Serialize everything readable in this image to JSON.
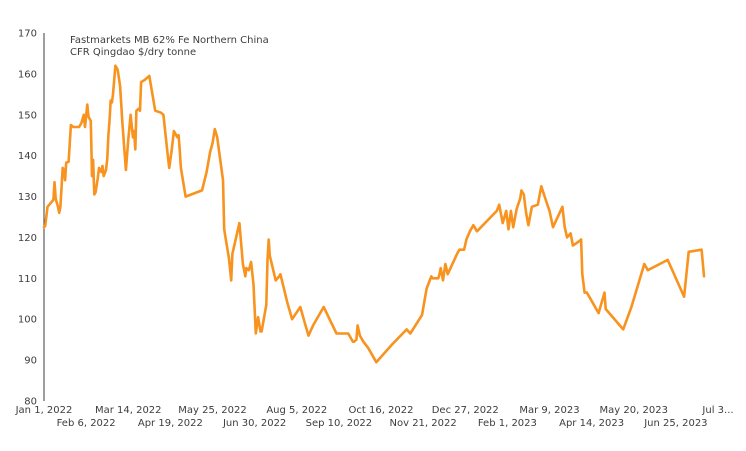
{
  "chart_data": {
    "type": "line",
    "title_lines": [
      "Fastmarkets MB 62% Fe Northern China",
      "CFR Qingdao $/dry tonne"
    ],
    "xlabel": "",
    "ylabel": "",
    "ylim": [
      80,
      170
    ],
    "y_ticks": [
      80,
      90,
      100,
      110,
      120,
      130,
      140,
      150,
      160,
      170
    ],
    "x_range": [
      "2022-01-01",
      "2023-07-31"
    ],
    "x_ticks_upper": [
      {
        "date": "2022-01-01",
        "label": "Jan 1, 2022"
      },
      {
        "date": "2022-03-14",
        "label": "Mar 14, 2022"
      },
      {
        "date": "2022-05-25",
        "label": "May 25, 2022"
      },
      {
        "date": "2022-08-05",
        "label": "Aug 5, 2022"
      },
      {
        "date": "2022-10-16",
        "label": "Oct 16, 2022"
      },
      {
        "date": "2022-12-27",
        "label": "Dec 27, 2022"
      },
      {
        "date": "2023-03-09",
        "label": "Mar 9, 2023"
      },
      {
        "date": "2023-05-20",
        "label": "May 20, 2023"
      },
      {
        "date": "2023-07-31",
        "label": "Jul 3..."
      }
    ],
    "x_ticks_lower": [
      {
        "date": "2022-02-06",
        "label": "Feb 6, 2022"
      },
      {
        "date": "2022-04-19",
        "label": "Apr 19, 2022"
      },
      {
        "date": "2022-06-30",
        "label": "Jun 30, 2022"
      },
      {
        "date": "2022-09-10",
        "label": "Sep 10, 2022"
      },
      {
        "date": "2022-11-21",
        "label": "Nov 21, 2022"
      },
      {
        "date": "2023-02-01",
        "label": "Feb 1, 2023"
      },
      {
        "date": "2023-04-14",
        "label": "Apr 14, 2023"
      },
      {
        "date": "2023-06-25",
        "label": "Jun 25, 2023"
      }
    ],
    "grid": false,
    "series": [
      {
        "color": "#f7931e",
        "points": [
          {
            "x": "2022-01-01",
            "y": 122.5
          },
          {
            "x": "2022-01-02",
            "y": 122.8
          },
          {
            "x": "2022-01-04",
            "y": 127.5
          },
          {
            "x": "2022-01-07",
            "y": 128.5
          },
          {
            "x": "2022-01-09",
            "y": 129.2
          },
          {
            "x": "2022-01-10",
            "y": 133.5
          },
          {
            "x": "2022-01-11",
            "y": 129.5
          },
          {
            "x": "2022-01-13",
            "y": 127.5
          },
          {
            "x": "2022-01-14",
            "y": 126.0
          },
          {
            "x": "2022-01-15",
            "y": 127.5
          },
          {
            "x": "2022-01-17",
            "y": 137.0
          },
          {
            "x": "2022-01-18",
            "y": 136.5
          },
          {
            "x": "2022-01-19",
            "y": 134.0
          },
          {
            "x": "2022-01-20",
            "y": 138.3
          },
          {
            "x": "2022-01-22",
            "y": 138.5
          },
          {
            "x": "2022-01-24",
            "y": 147.5
          },
          {
            "x": "2022-01-26",
            "y": 147.0
          },
          {
            "x": "2022-01-27",
            "y": 147.0
          },
          {
            "x": "2022-01-31",
            "y": 147.0
          },
          {
            "x": "2022-02-02",
            "y": 148.0
          },
          {
            "x": "2022-02-04",
            "y": 150.0
          },
          {
            "x": "2022-02-05",
            "y": 147.0
          },
          {
            "x": "2022-02-07",
            "y": 152.5
          },
          {
            "x": "2022-02-08",
            "y": 149.5
          },
          {
            "x": "2022-02-10",
            "y": 148.5
          },
          {
            "x": "2022-02-11",
            "y": 135.0
          },
          {
            "x": "2022-02-12",
            "y": 139.0
          },
          {
            "x": "2022-02-13",
            "y": 130.5
          },
          {
            "x": "2022-02-14",
            "y": 131.0
          },
          {
            "x": "2022-02-16",
            "y": 134.5
          },
          {
            "x": "2022-02-17",
            "y": 137.0
          },
          {
            "x": "2022-02-19",
            "y": 136.0
          },
          {
            "x": "2022-02-20",
            "y": 137.5
          },
          {
            "x": "2022-02-21",
            "y": 135.0
          },
          {
            "x": "2022-02-23",
            "y": 136.5
          },
          {
            "x": "2022-02-24",
            "y": 139.0
          },
          {
            "x": "2022-02-25",
            "y": 145.0
          },
          {
            "x": "2022-02-26",
            "y": 148.5
          },
          {
            "x": "2022-02-27",
            "y": 153.5
          },
          {
            "x": "2022-02-28",
            "y": 153.0
          },
          {
            "x": "2022-03-01",
            "y": 155.0
          },
          {
            "x": "2022-03-03",
            "y": 162.0
          },
          {
            "x": "2022-03-05",
            "y": 161.0
          },
          {
            "x": "2022-03-07",
            "y": 157.0
          },
          {
            "x": "2022-03-09",
            "y": 148.0
          },
          {
            "x": "2022-03-10",
            "y": 144.0
          },
          {
            "x": "2022-03-12",
            "y": 136.5
          },
          {
            "x": "2022-03-14",
            "y": 144.0
          },
          {
            "x": "2022-03-16",
            "y": 150.0
          },
          {
            "x": "2022-03-18",
            "y": 144.5
          },
          {
            "x": "2022-03-19",
            "y": 146.0
          },
          {
            "x": "2022-03-20",
            "y": 141.5
          },
          {
            "x": "2022-03-21",
            "y": 151.0
          },
          {
            "x": "2022-03-23",
            "y": 151.5
          },
          {
            "x": "2022-03-24",
            "y": 151.0
          },
          {
            "x": "2022-03-25",
            "y": 158.0
          },
          {
            "x": "2022-03-28",
            "y": 158.5
          },
          {
            "x": "2022-04-01",
            "y": 159.5
          },
          {
            "x": "2022-04-06",
            "y": 151.0
          },
          {
            "x": "2022-04-11",
            "y": 150.5
          },
          {
            "x": "2022-04-13",
            "y": 150.0
          },
          {
            "x": "2022-04-16",
            "y": 142.0
          },
          {
            "x": "2022-04-18",
            "y": 137.0
          },
          {
            "x": "2022-04-20",
            "y": 141.0
          },
          {
            "x": "2022-04-22",
            "y": 146.0
          },
          {
            "x": "2022-04-25",
            "y": 144.5
          },
          {
            "x": "2022-04-26",
            "y": 145.0
          },
          {
            "x": "2022-04-27",
            "y": 141.5
          },
          {
            "x": "2022-04-28",
            "y": 137.0
          },
          {
            "x": "2022-05-02",
            "y": 130.0
          },
          {
            "x": "2022-05-16",
            "y": 131.5
          },
          {
            "x": "2022-05-20",
            "y": 136.0
          },
          {
            "x": "2022-05-23",
            "y": 141.0
          },
          {
            "x": "2022-05-25",
            "y": 143.0
          },
          {
            "x": "2022-05-27",
            "y": 146.5
          },
          {
            "x": "2022-05-29",
            "y": 144.5
          },
          {
            "x": "2022-06-03",
            "y": 134.0
          },
          {
            "x": "2022-06-04",
            "y": 122.0
          },
          {
            "x": "2022-06-06",
            "y": 118.5
          },
          {
            "x": "2022-06-08",
            "y": 115.0
          },
          {
            "x": "2022-06-10",
            "y": 109.5
          },
          {
            "x": "2022-06-11",
            "y": 116.0
          },
          {
            "x": "2022-06-17",
            "y": 123.5
          },
          {
            "x": "2022-06-20",
            "y": 113.5
          },
          {
            "x": "2022-06-22",
            "y": 110.5
          },
          {
            "x": "2022-06-23",
            "y": 112.5
          },
          {
            "x": "2022-06-25",
            "y": 112.0
          },
          {
            "x": "2022-06-27",
            "y": 114.0
          },
          {
            "x": "2022-06-29",
            "y": 108.5
          },
          {
            "x": "2022-07-01",
            "y": 96.5
          },
          {
            "x": "2022-07-03",
            "y": 100.5
          },
          {
            "x": "2022-07-05",
            "y": 97.0
          },
          {
            "x": "2022-07-06",
            "y": 97.0
          },
          {
            "x": "2022-07-10",
            "y": 103.5
          },
          {
            "x": "2022-07-11",
            "y": 114.5
          },
          {
            "x": "2022-07-12",
            "y": 119.5
          },
          {
            "x": "2022-07-13",
            "y": 115.5
          },
          {
            "x": "2022-07-18",
            "y": 109.5
          },
          {
            "x": "2022-07-21",
            "y": 110.5
          },
          {
            "x": "2022-07-22",
            "y": 111.0
          },
          {
            "x": "2022-07-28",
            "y": 104.0
          },
          {
            "x": "2022-08-01",
            "y": 100.0
          },
          {
            "x": "2022-08-08",
            "y": 103.0
          },
          {
            "x": "2022-08-12",
            "y": 99.0
          },
          {
            "x": "2022-08-15",
            "y": 96.0
          },
          {
            "x": "2022-08-19",
            "y": 98.5
          },
          {
            "x": "2022-08-28",
            "y": 103.0
          },
          {
            "x": "2022-09-08",
            "y": 96.5
          },
          {
            "x": "2022-09-18",
            "y": 96.5
          },
          {
            "x": "2022-09-20",
            "y": 95.5
          },
          {
            "x": "2022-09-22",
            "y": 94.5
          },
          {
            "x": "2022-09-23",
            "y": 94.5
          },
          {
            "x": "2022-09-25",
            "y": 95.0
          },
          {
            "x": "2022-09-26",
            "y": 98.5
          },
          {
            "x": "2022-09-28",
            "y": 96.0
          },
          {
            "x": "2022-10-01",
            "y": 94.5
          },
          {
            "x": "2022-10-05",
            "y": 93.0
          },
          {
            "x": "2022-10-12",
            "y": 89.5
          },
          {
            "x": "2022-10-26",
            "y": 94.0
          },
          {
            "x": "2022-11-07",
            "y": 97.5
          },
          {
            "x": "2022-11-10",
            "y": 96.5
          },
          {
            "x": "2022-11-20",
            "y": 101.0
          },
          {
            "x": "2022-11-24",
            "y": 107.5
          },
          {
            "x": "2022-11-28",
            "y": 110.5
          },
          {
            "x": "2022-11-29",
            "y": 110.0
          },
          {
            "x": "2022-12-03",
            "y": 110.0
          },
          {
            "x": "2022-12-04",
            "y": 110.0
          },
          {
            "x": "2022-12-05",
            "y": 111.0
          },
          {
            "x": "2022-12-06",
            "y": 112.5
          },
          {
            "x": "2022-12-08",
            "y": 109.5
          },
          {
            "x": "2022-12-10",
            "y": 113.5
          },
          {
            "x": "2022-12-12",
            "y": 111.0
          },
          {
            "x": "2022-12-20",
            "y": 116.0
          },
          {
            "x": "2022-12-22",
            "y": 117.0
          },
          {
            "x": "2022-12-26",
            "y": 117.0
          },
          {
            "x": "2022-12-28",
            "y": 119.5
          },
          {
            "x": "2022-12-31",
            "y": 121.5
          },
          {
            "x": "2023-01-03",
            "y": 123.0
          },
          {
            "x": "2023-01-06",
            "y": 121.5
          },
          {
            "x": "2023-01-23",
            "y": 126.5
          },
          {
            "x": "2023-01-25",
            "y": 128.0
          },
          {
            "x": "2023-01-28",
            "y": 123.5
          },
          {
            "x": "2023-01-31",
            "y": 126.5
          },
          {
            "x": "2023-02-02",
            "y": 122.0
          },
          {
            "x": "2023-02-04",
            "y": 126.5
          },
          {
            "x": "2023-02-06",
            "y": 122.5
          },
          {
            "x": "2023-02-09",
            "y": 127.0
          },
          {
            "x": "2023-02-12",
            "y": 129.5
          },
          {
            "x": "2023-02-13",
            "y": 131.5
          },
          {
            "x": "2023-02-15",
            "y": 130.5
          },
          {
            "x": "2023-02-17",
            "y": 126.0
          },
          {
            "x": "2023-02-19",
            "y": 123.0
          },
          {
            "x": "2023-02-22",
            "y": 127.5
          },
          {
            "x": "2023-02-27",
            "y": 128.0
          },
          {
            "x": "2023-03-02",
            "y": 132.5
          },
          {
            "x": "2023-03-06",
            "y": 129.0
          },
          {
            "x": "2023-03-09",
            "y": 126.5
          },
          {
            "x": "2023-03-12",
            "y": 122.5
          },
          {
            "x": "2023-03-20",
            "y": 127.5
          },
          {
            "x": "2023-03-22",
            "y": 122.5
          },
          {
            "x": "2023-03-24",
            "y": 120.0
          },
          {
            "x": "2023-03-27",
            "y": 121.0
          },
          {
            "x": "2023-03-29",
            "y": 118.0
          },
          {
            "x": "2023-04-03",
            "y": 119.0
          },
          {
            "x": "2023-04-05",
            "y": 119.5
          },
          {
            "x": "2023-04-06",
            "y": 111.0
          },
          {
            "x": "2023-04-08",
            "y": 106.5
          },
          {
            "x": "2023-04-10",
            "y": 106.5
          },
          {
            "x": "2023-04-14",
            "y": 104.5
          },
          {
            "x": "2023-04-20",
            "y": 101.5
          },
          {
            "x": "2023-04-25",
            "y": 106.5
          },
          {
            "x": "2023-04-26",
            "y": 102.5
          },
          {
            "x": "2023-05-11",
            "y": 97.5
          },
          {
            "x": "2023-05-18",
            "y": 103.0
          },
          {
            "x": "2023-05-29",
            "y": 113.5
          },
          {
            "x": "2023-06-01",
            "y": 112.0
          },
          {
            "x": "2023-06-18",
            "y": 114.5
          },
          {
            "x": "2023-07-02",
            "y": 105.5
          },
          {
            "x": "2023-07-06",
            "y": 116.5
          },
          {
            "x": "2023-07-17",
            "y": 117.0
          },
          {
            "x": "2023-07-19",
            "y": 110.5
          }
        ]
      }
    ]
  }
}
